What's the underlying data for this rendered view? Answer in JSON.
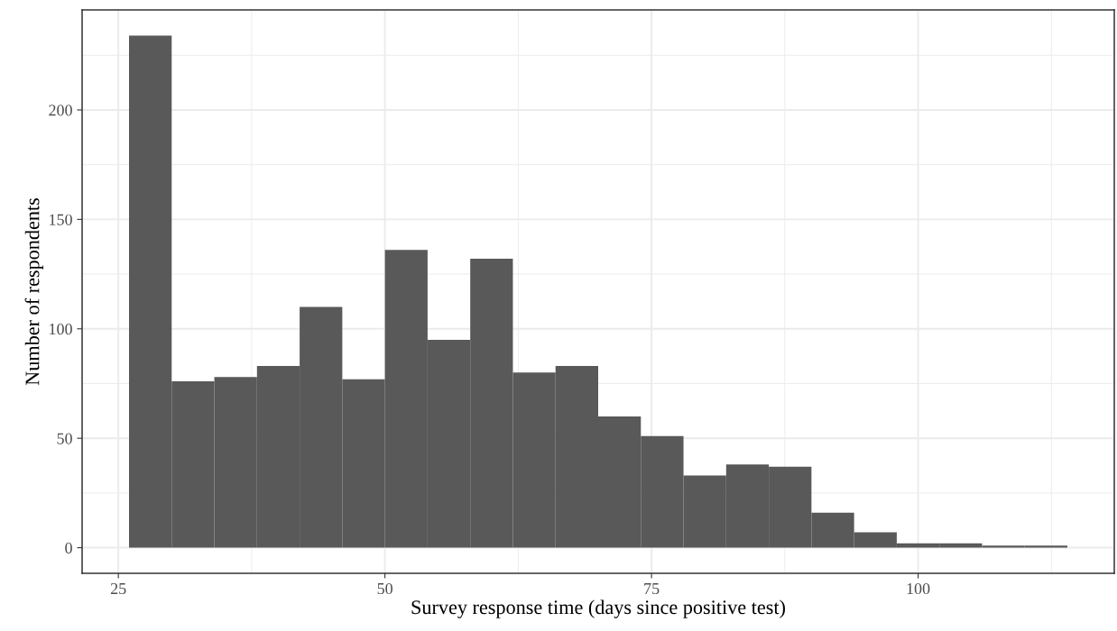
{
  "chart_data": {
    "type": "histogram",
    "xlabel": "Survey response time (days since positive test)",
    "ylabel": "Number of respondents",
    "bins": [
      26,
      30,
      34,
      38,
      42,
      46,
      50,
      54,
      58,
      62,
      66,
      70,
      74,
      78,
      82,
      86,
      90,
      94,
      98,
      102,
      106,
      110,
      114
    ],
    "values": [
      234,
      76,
      78,
      83,
      110,
      77,
      136,
      95,
      132,
      80,
      83,
      60,
      51,
      33,
      38,
      37,
      16,
      7,
      2,
      2,
      1,
      1
    ],
    "color": "#595959",
    "xlim": [
      21.6,
      118.4
    ],
    "xticks": [
      25,
      50,
      75,
      100
    ],
    "ylim": [
      -11.7,
      245.7
    ],
    "yticks": [
      0,
      50,
      100,
      150,
      200
    ],
    "grid": true
  }
}
